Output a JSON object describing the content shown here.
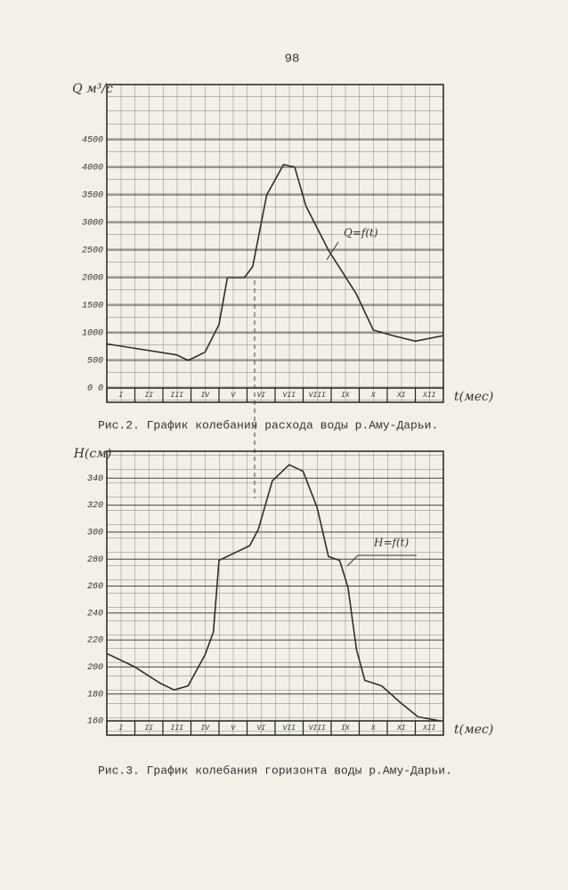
{
  "page_number": "98",
  "chart_data": [
    {
      "type": "line",
      "title": "Рис.2. График колебания расхода воды р.Аму-Дарьи.",
      "ylabel": "Q м³/с",
      "xlabel": "t(мес)",
      "annotation": "Q=f(t)",
      "categories": [
        "I",
        "II",
        "III",
        "IV",
        "V",
        "VI",
        "VII",
        "VIII",
        "IX",
        "X",
        "XI",
        "XII"
      ],
      "x": [
        0,
        2.5,
        2.9,
        3.5,
        4.0,
        4.3,
        4.9,
        5.2,
        5.7,
        6.3,
        6.7,
        7.1,
        7.9,
        8.9,
        9.5,
        10.2,
        11.0,
        12.0
      ],
      "values": [
        800,
        600,
        500,
        650,
        1150,
        2000,
        2000,
        2200,
        3500,
        4050,
        4000,
        3300,
        2500,
        1700,
        1050,
        950,
        850,
        950
      ],
      "color": "#2e2e2e",
      "xlim": [
        0,
        12
      ],
      "ylim": [
        0,
        5500
      ],
      "yticks": [
        {
          "value": 0,
          "label": "0 0"
        },
        500,
        1000,
        1500,
        2000,
        2500,
        3000,
        3500,
        4000,
        4500
      ],
      "grid": true
    },
    {
      "type": "line",
      "title": "Рис.3. График колебания горизонта воды р.Аму-Дарьи.",
      "ylabel": "H(см)",
      "xlabel": "t(мес)",
      "annotation": "H=f(t)",
      "categories": [
        "I",
        "II",
        "III",
        "IV",
        "V",
        "VI",
        "VII",
        "VIII",
        "IX",
        "X",
        "XI",
        "XII"
      ],
      "x": [
        0,
        1.0,
        1.9,
        2.4,
        2.9,
        3.5,
        3.8,
        4.0,
        4.3,
        5.1,
        5.4,
        5.9,
        6.5,
        7.0,
        7.5,
        7.9,
        8.3,
        8.6,
        8.9,
        9.2,
        9.8,
        10.5,
        11.1,
        11.9
      ],
      "values": [
        210,
        200,
        188,
        183,
        186,
        209,
        226,
        279,
        282,
        290,
        302,
        338,
        350,
        345,
        318,
        282,
        279,
        259,
        213,
        190,
        186,
        173,
        163,
        160
      ],
      "color": "#2e2e2e",
      "xlim": [
        0,
        12
      ],
      "ylim": [
        160,
        360
      ],
      "yticks": [
        160,
        180,
        200,
        220,
        240,
        260,
        280,
        300,
        320,
        340
      ],
      "grid": true
    }
  ]
}
